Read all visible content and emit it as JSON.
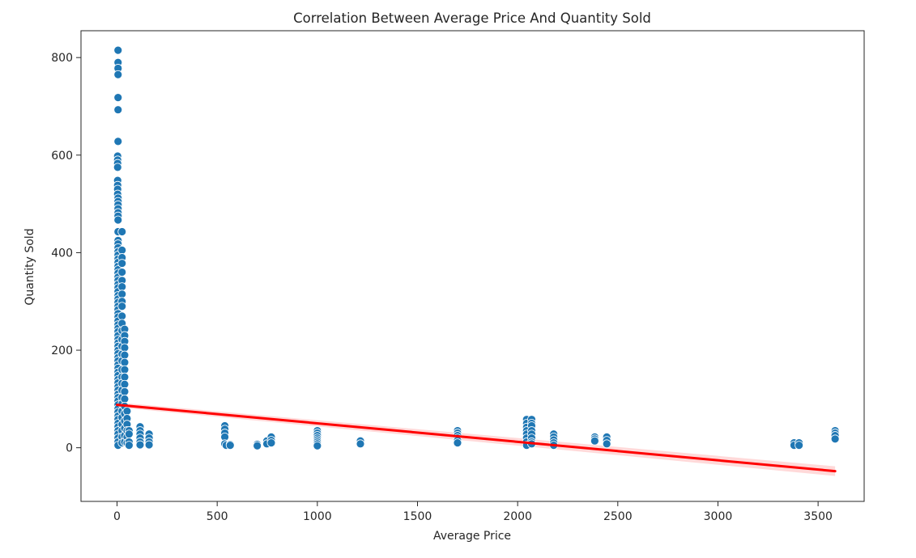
{
  "chart_data": {
    "type": "scatter",
    "title": "Correlation Between Average Price And Quantity Sold",
    "xlabel": "Average Price",
    "ylabel": "Quantity Sold",
    "xlim": [
      -180,
      3730
    ],
    "ylim": [
      -110,
      855
    ],
    "xticks": [
      0,
      500,
      1000,
      1500,
      2000,
      2500,
      3000,
      3500
    ],
    "yticks": [
      0,
      200,
      400,
      600,
      800
    ],
    "grid": false,
    "colors": {
      "points": "#1f77b4",
      "point_edge": "#ffffff",
      "trend": "#ff0000",
      "band": "#ff0000"
    },
    "series": [
      {
        "kind": "points",
        "points": [
          [
            5,
            815
          ],
          [
            5,
            790
          ],
          [
            5,
            778
          ],
          [
            5,
            765
          ],
          [
            5,
            718
          ],
          [
            5,
            693
          ],
          [
            5,
            628
          ],
          [
            3,
            598
          ],
          [
            3,
            590
          ],
          [
            3,
            583
          ],
          [
            3,
            575
          ],
          [
            3,
            548
          ],
          [
            3,
            538
          ],
          [
            3,
            530
          ],
          [
            3,
            520
          ],
          [
            5,
            512
          ],
          [
            5,
            505
          ],
          [
            5,
            498
          ],
          [
            5,
            490
          ],
          [
            5,
            482
          ],
          [
            5,
            475
          ],
          [
            5,
            467
          ],
          [
            5,
            443
          ],
          [
            5,
            425
          ],
          [
            5,
            418
          ],
          [
            5,
            410
          ],
          [
            5,
            402
          ],
          [
            5,
            395
          ],
          [
            5,
            387
          ],
          [
            5,
            380
          ],
          [
            5,
            372
          ],
          [
            5,
            365
          ],
          [
            5,
            358
          ],
          [
            5,
            350
          ],
          [
            5,
            343
          ],
          [
            5,
            335
          ],
          [
            5,
            328
          ],
          [
            5,
            320
          ],
          [
            5,
            312
          ],
          [
            5,
            305
          ],
          [
            5,
            298
          ],
          [
            5,
            290
          ],
          [
            5,
            283
          ],
          [
            5,
            275
          ],
          [
            5,
            268
          ],
          [
            5,
            260
          ],
          [
            5,
            252
          ],
          [
            5,
            245
          ],
          [
            5,
            238
          ],
          [
            5,
            230
          ],
          [
            5,
            222
          ],
          [
            5,
            215
          ],
          [
            5,
            208
          ],
          [
            5,
            200
          ],
          [
            5,
            193
          ],
          [
            5,
            185
          ],
          [
            5,
            178
          ],
          [
            5,
            170
          ],
          [
            5,
            163
          ],
          [
            5,
            155
          ],
          [
            5,
            148
          ],
          [
            5,
            140
          ],
          [
            5,
            133
          ],
          [
            5,
            125
          ],
          [
            5,
            118
          ],
          [
            5,
            110
          ],
          [
            5,
            103
          ],
          [
            5,
            96
          ],
          [
            5,
            88
          ],
          [
            5,
            80
          ],
          [
            5,
            73
          ],
          [
            5,
            65
          ],
          [
            5,
            58
          ],
          [
            5,
            50
          ],
          [
            5,
            43
          ],
          [
            5,
            35
          ],
          [
            5,
            28
          ],
          [
            5,
            20
          ],
          [
            5,
            12
          ],
          [
            5,
            5
          ],
          [
            25,
            443
          ],
          [
            25,
            405
          ],
          [
            25,
            390
          ],
          [
            25,
            378
          ],
          [
            25,
            360
          ],
          [
            25,
            343
          ],
          [
            25,
            330
          ],
          [
            25,
            315
          ],
          [
            25,
            300
          ],
          [
            25,
            290
          ],
          [
            25,
            270
          ],
          [
            25,
            255
          ],
          [
            25,
            240
          ],
          [
            25,
            222
          ],
          [
            25,
            208
          ],
          [
            25,
            192
          ],
          [
            25,
            178
          ],
          [
            25,
            160
          ],
          [
            25,
            145
          ],
          [
            25,
            132
          ],
          [
            25,
            118
          ],
          [
            25,
            103
          ],
          [
            25,
            90
          ],
          [
            25,
            75
          ],
          [
            25,
            62
          ],
          [
            25,
            48
          ],
          [
            25,
            35
          ],
          [
            25,
            22
          ],
          [
            25,
            10
          ],
          [
            38,
            243
          ],
          [
            38,
            230
          ],
          [
            38,
            218
          ],
          [
            38,
            205
          ],
          [
            38,
            190
          ],
          [
            38,
            175
          ],
          [
            38,
            160
          ],
          [
            38,
            145
          ],
          [
            38,
            130
          ],
          [
            38,
            115
          ],
          [
            38,
            100
          ],
          [
            38,
            85
          ],
          [
            38,
            70
          ],
          [
            38,
            55
          ],
          [
            38,
            40
          ],
          [
            38,
            25
          ],
          [
            38,
            12
          ],
          [
            50,
            75
          ],
          [
            50,
            60
          ],
          [
            50,
            48
          ],
          [
            50,
            35
          ],
          [
            50,
            22
          ],
          [
            50,
            10
          ],
          [
            60,
            35
          ],
          [
            60,
            28
          ],
          [
            60,
            12
          ],
          [
            60,
            5
          ],
          [
            115,
            43
          ],
          [
            115,
            35
          ],
          [
            115,
            28
          ],
          [
            115,
            20
          ],
          [
            115,
            12
          ],
          [
            115,
            6
          ],
          [
            160,
            28
          ],
          [
            160,
            20
          ],
          [
            160,
            12
          ],
          [
            160,
            6
          ],
          [
            538,
            45
          ],
          [
            538,
            38
          ],
          [
            538,
            30
          ],
          [
            538,
            22
          ],
          [
            538,
            8
          ],
          [
            545,
            5
          ],
          [
            565,
            7
          ],
          [
            565,
            5
          ],
          [
            700,
            7
          ],
          [
            700,
            4
          ],
          [
            748,
            14
          ],
          [
            748,
            8
          ],
          [
            770,
            22
          ],
          [
            770,
            15
          ],
          [
            770,
            10
          ],
          [
            1000,
            35
          ],
          [
            1000,
            30
          ],
          [
            1000,
            25
          ],
          [
            1000,
            20
          ],
          [
            1000,
            16
          ],
          [
            1000,
            12
          ],
          [
            1000,
            8
          ],
          [
            1000,
            4
          ],
          [
            1215,
            14
          ],
          [
            1215,
            8
          ],
          [
            1700,
            35
          ],
          [
            1700,
            30
          ],
          [
            1700,
            25
          ],
          [
            1700,
            20
          ],
          [
            1700,
            15
          ],
          [
            1700,
            10
          ],
          [
            2045,
            58
          ],
          [
            2045,
            50
          ],
          [
            2045,
            42
          ],
          [
            2045,
            35
          ],
          [
            2045,
            28
          ],
          [
            2045,
            20
          ],
          [
            2045,
            12
          ],
          [
            2045,
            5
          ],
          [
            2070,
            58
          ],
          [
            2070,
            50
          ],
          [
            2070,
            45
          ],
          [
            2070,
            35
          ],
          [
            2070,
            28
          ],
          [
            2070,
            20
          ],
          [
            2070,
            12
          ],
          [
            2070,
            8
          ],
          [
            2180,
            28
          ],
          [
            2180,
            22
          ],
          [
            2180,
            16
          ],
          [
            2180,
            10
          ],
          [
            2180,
            5
          ],
          [
            2385,
            22
          ],
          [
            2385,
            18
          ],
          [
            2385,
            14
          ],
          [
            2445,
            22
          ],
          [
            2445,
            15
          ],
          [
            2445,
            8
          ],
          [
            3380,
            10
          ],
          [
            3380,
            5
          ],
          [
            3405,
            10
          ],
          [
            3405,
            5
          ],
          [
            3585,
            35
          ],
          [
            3585,
            30
          ],
          [
            3585,
            25
          ],
          [
            3585,
            18
          ]
        ]
      },
      {
        "kind": "trend",
        "x": [
          0,
          3585
        ],
        "y": [
          88,
          -48
        ]
      }
    ]
  }
}
